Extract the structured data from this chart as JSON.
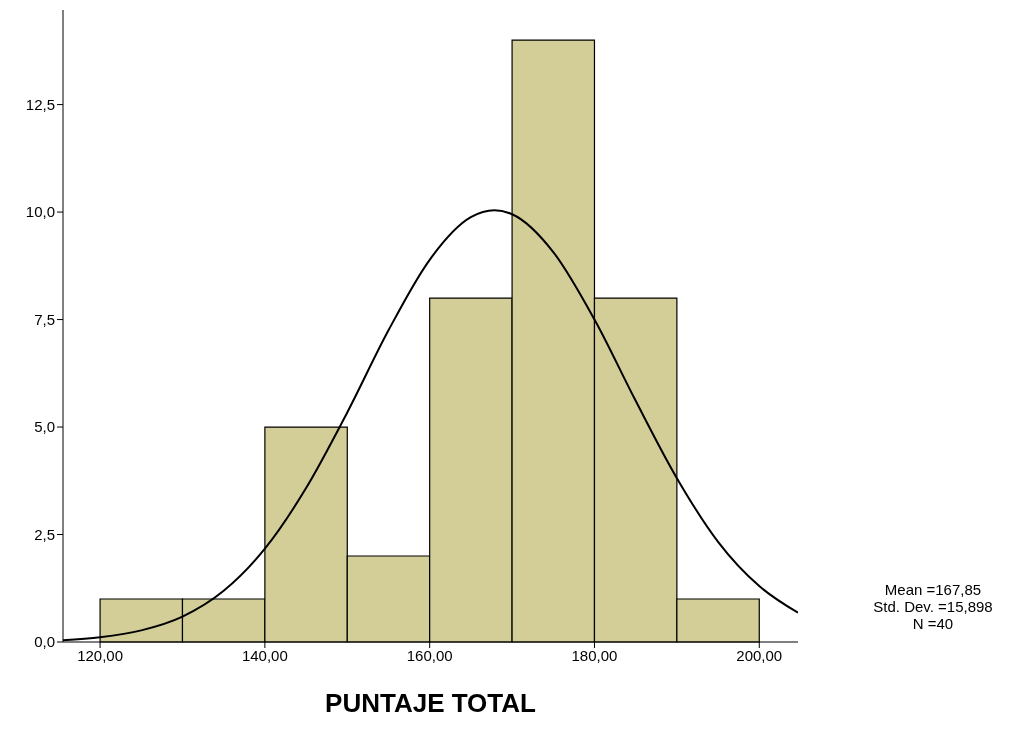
{
  "chart_data": {
    "type": "histogram",
    "xlabel": "PUNTAJE TOTAL",
    "series": [
      {
        "bins": [
          120,
          130,
          140,
          150,
          160,
          170,
          180,
          190,
          200
        ],
        "values": [
          1,
          1,
          5,
          2,
          8,
          14,
          8,
          1
        ],
        "color": "#d3ce98"
      },
      {
        "type": "line",
        "color": "#000000",
        "x": [
          115.5,
          120,
          125,
          130,
          135,
          140,
          145,
          150,
          155,
          160,
          165,
          167.85,
          170,
          175,
          180,
          185,
          190,
          195,
          200,
          204.7
        ],
        "values": [
          0.04,
          0.11,
          0.27,
          0.59,
          1.19,
          2.17,
          3.58,
          5.34,
          7.25,
          8.89,
          9.88,
          10.04,
          9.95,
          9.07,
          7.5,
          5.61,
          3.81,
          2.33,
          1.3,
          0.68
        ]
      }
    ],
    "xlim": [
      115.5,
      204.7
    ],
    "xticks": [
      {
        "value": 120,
        "label": "120,00"
      },
      {
        "value": 140,
        "label": "140,00"
      },
      {
        "value": 160,
        "label": "160,00"
      },
      {
        "value": 180,
        "label": "180,00"
      },
      {
        "value": 200,
        "label": "200,00"
      }
    ],
    "ylim": [
      0,
      14.7
    ],
    "yticks": [
      {
        "value": 0,
        "label": "0,0"
      },
      {
        "value": 2.5,
        "label": "2,5"
      },
      {
        "value": 5,
        "label": "5,0"
      },
      {
        "value": 7.5,
        "label": "7,5"
      },
      {
        "value": 10,
        "label": "10,0"
      },
      {
        "value": 12.5,
        "label": "12,5"
      }
    ],
    "marker": "none",
    "grid": false,
    "annotations": [
      "Mean =167,85",
      "Std. Dev. =15,898",
      "N =40"
    ]
  }
}
